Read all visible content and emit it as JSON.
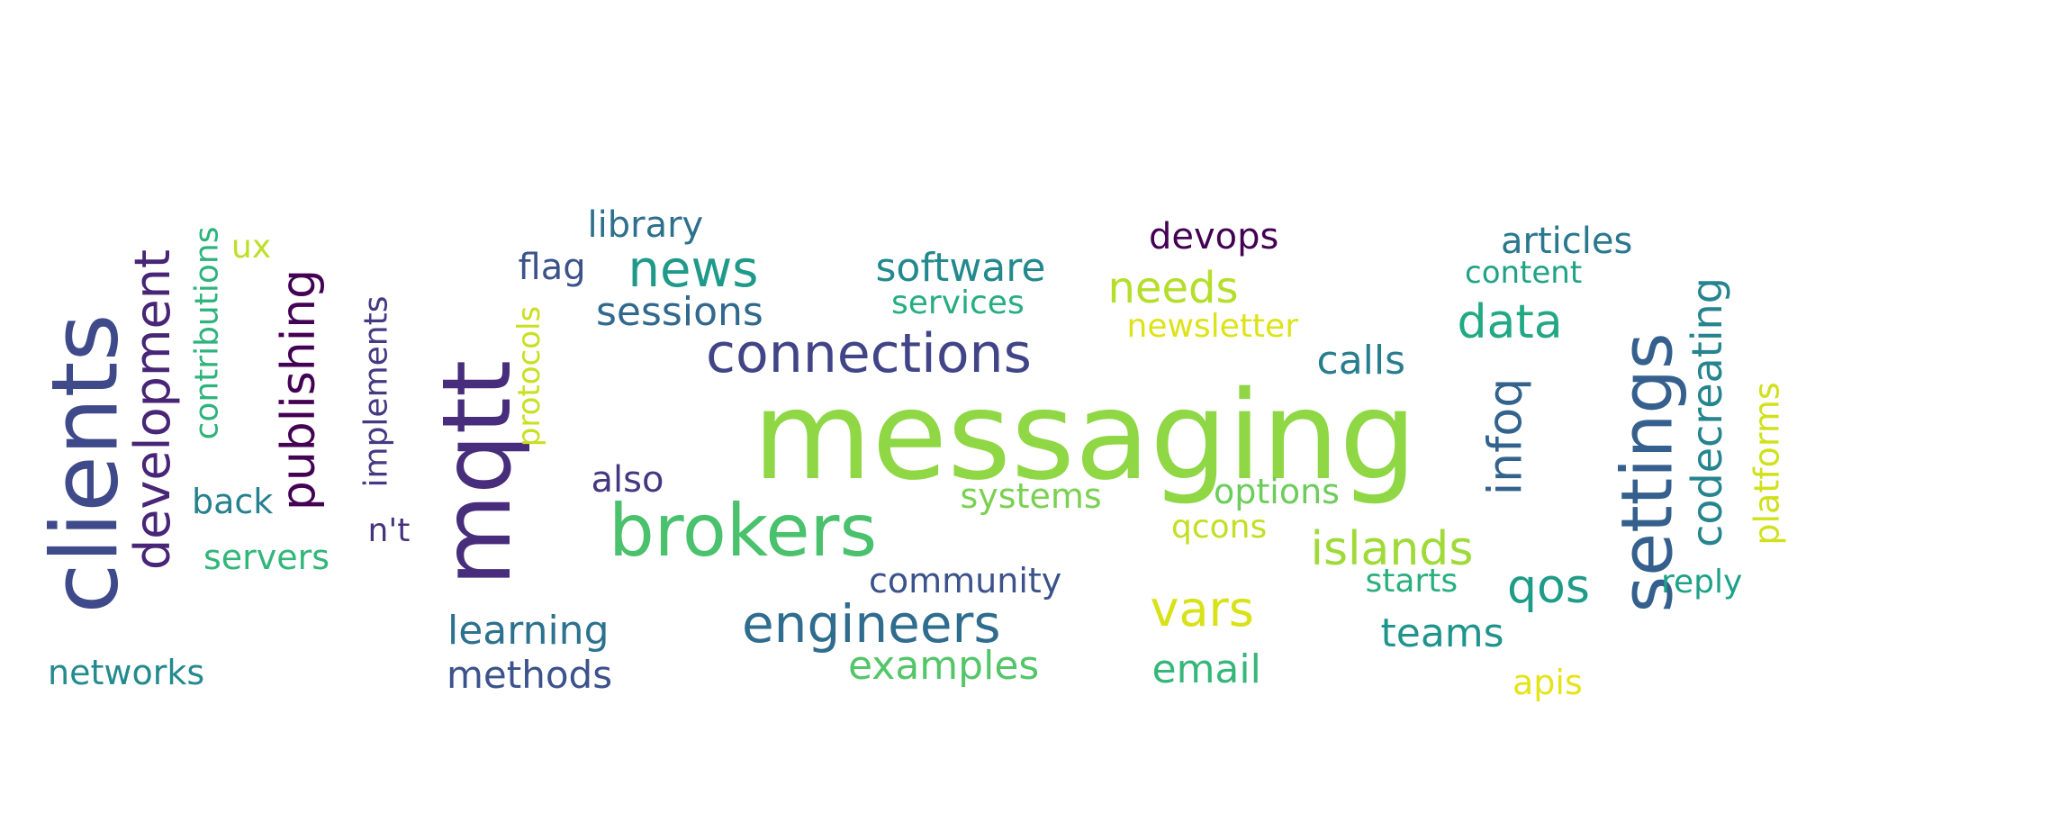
{
  "colors": {
    "background": "#ffffff",
    "outline": "#000000"
  },
  "words": [
    {
      "text": "messaging",
      "color": "#8fd744"
    },
    {
      "text": "mqtt",
      "color": "#472d7b"
    },
    {
      "text": "clients",
      "color": "#3e4a89"
    },
    {
      "text": "brokers",
      "color": "#4ac16d"
    },
    {
      "text": "settings",
      "color": "#355f8d"
    },
    {
      "text": "connections",
      "color": "#414487"
    },
    {
      "text": "engineers",
      "color": "#2f6c8e"
    },
    {
      "text": "development",
      "color": "#482576"
    },
    {
      "text": "publishing",
      "color": "#440154"
    },
    {
      "text": "news",
      "color": "#1f9a8a"
    },
    {
      "text": "infoq",
      "color": "#33638d"
    },
    {
      "text": "islands",
      "color": "#a0da39"
    },
    {
      "text": "vars",
      "color": "#d8e219"
    },
    {
      "text": "data",
      "color": "#22a884"
    },
    {
      "text": "needs",
      "color": "#b5de2b"
    },
    {
      "text": "qos",
      "color": "#1e9c89"
    },
    {
      "text": "codecreating",
      "color": "#25848e"
    },
    {
      "text": "sessions",
      "color": "#31688e"
    },
    {
      "text": "software",
      "color": "#23898e"
    },
    {
      "text": "learning",
      "color": "#2c728e"
    },
    {
      "text": "methods",
      "color": "#3b528b"
    },
    {
      "text": "teams",
      "color": "#1f948c"
    },
    {
      "text": "calls",
      "color": "#287d8e"
    },
    {
      "text": "examples",
      "color": "#54c568"
    },
    {
      "text": "email",
      "color": "#35b779"
    },
    {
      "text": "articles",
      "color": "#2a788e"
    },
    {
      "text": "community",
      "color": "#3b528b"
    },
    {
      "text": "options",
      "color": "#6ccd5a"
    },
    {
      "text": "systems",
      "color": "#7ad151"
    },
    {
      "text": "platforms",
      "color": "#d0e11c"
    },
    {
      "text": "contributions",
      "color": "#2eb37c"
    },
    {
      "text": "implements",
      "color": "#443983"
    },
    {
      "text": "protocols",
      "color": "#c8e020"
    },
    {
      "text": "devops",
      "color": "#440154"
    },
    {
      "text": "library",
      "color": "#2d708e"
    },
    {
      "text": "flag",
      "color": "#3b528b"
    },
    {
      "text": "services",
      "color": "#26ad81"
    },
    {
      "text": "newsletter",
      "color": "#dde318"
    },
    {
      "text": "also",
      "color": "#453781"
    },
    {
      "text": "back",
      "color": "#27808e"
    },
    {
      "text": "servers",
      "color": "#32b67a"
    },
    {
      "text": "networks",
      "color": "#238a8d"
    },
    {
      "text": "n't",
      "color": "#46327e"
    },
    {
      "text": "ux",
      "color": "#bddf26"
    },
    {
      "text": "content",
      "color": "#20a386"
    },
    {
      "text": "starts",
      "color": "#29af7f"
    },
    {
      "text": "reply",
      "color": "#1fa188"
    },
    {
      "text": "qcons",
      "color": "#c2df23"
    },
    {
      "text": "apis",
      "color": "#e5e419"
    }
  ]
}
